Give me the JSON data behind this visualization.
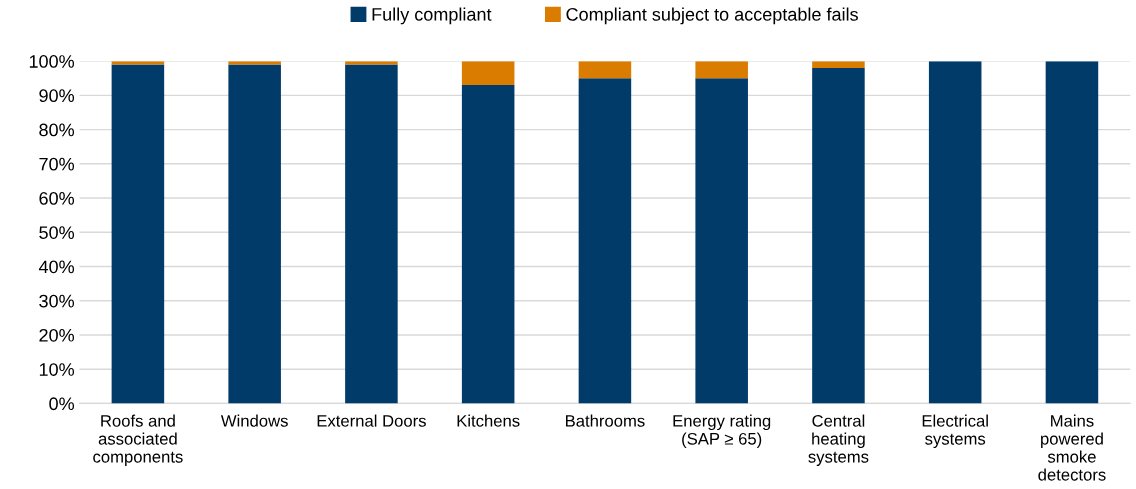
{
  "chart_data": {
    "type": "bar",
    "stacked": true,
    "categories": [
      "Roofs and\nassociated\ncomponents",
      "Windows",
      "External Doors",
      "Kitchens",
      "Bathrooms",
      "Energy rating\n(SAP ≥ 65)",
      "Central\nheating\nsystems",
      "Electrical\nsystems",
      "Mains\npowered\nsmoke\ndetectors"
    ],
    "series": [
      {
        "name": "Fully compliant",
        "color": "#003b6a",
        "values": [
          99,
          99,
          99,
          93,
          95,
          95,
          98,
          100,
          100
        ]
      },
      {
        "name": "Compliant subject to acceptable fails",
        "color": "#d97c00",
        "values": [
          1,
          1,
          1,
          7,
          5,
          5,
          2,
          0,
          0
        ]
      }
    ],
    "ylim": [
      0,
      100
    ],
    "yticks": [
      {
        "value": 0,
        "label": "0%"
      },
      {
        "value": 10,
        "label": "10%"
      },
      {
        "value": 20,
        "label": "20%"
      },
      {
        "value": 30,
        "label": "30%"
      },
      {
        "value": 40,
        "label": "40%"
      },
      {
        "value": 50,
        "label": "50%"
      },
      {
        "value": 60,
        "label": "60%"
      },
      {
        "value": 70,
        "label": "70%"
      },
      {
        "value": 80,
        "label": "80%"
      },
      {
        "value": 90,
        "label": "90%"
      },
      {
        "value": 100,
        "label": "100%"
      }
    ],
    "grid": "y",
    "legend": "top"
  }
}
